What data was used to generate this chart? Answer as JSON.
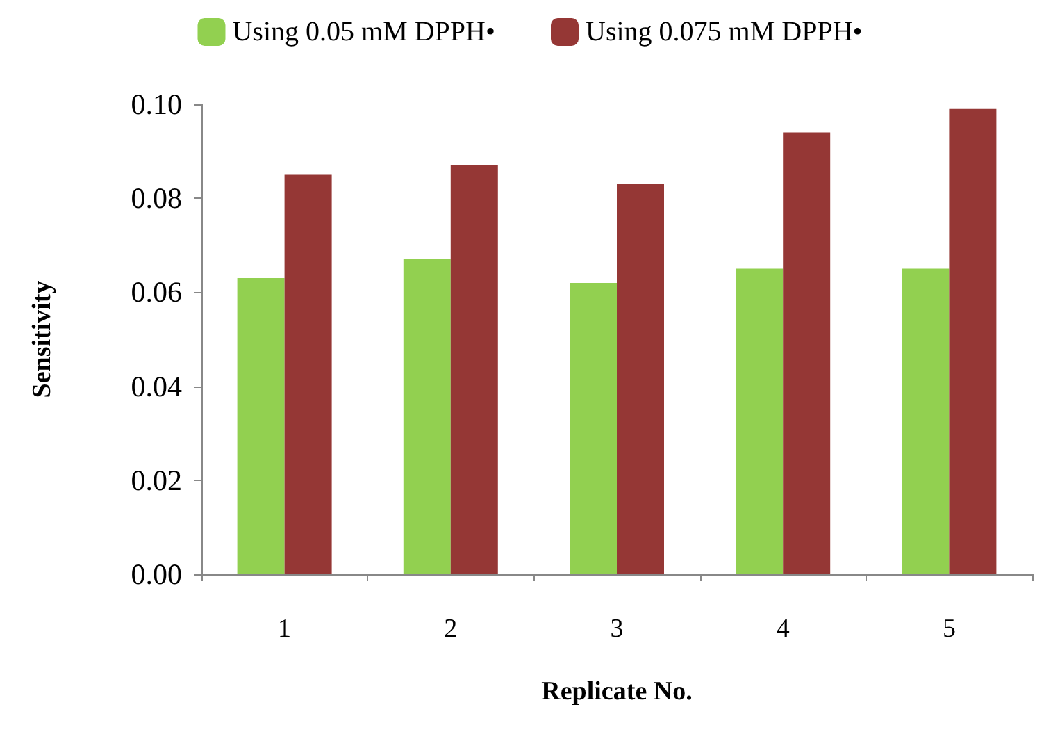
{
  "chart_data": {
    "type": "bar",
    "xlabel": "Replicate No.",
    "ylabel": "Sensitivity",
    "categories": [
      "1",
      "2",
      "3",
      "4",
      "5"
    ],
    "series": [
      {
        "name": "Using 0.05 mM DPPH•",
        "color": "#92d050",
        "values": [
          0.063,
          0.067,
          0.062,
          0.065,
          0.065
        ]
      },
      {
        "name": "Using 0.075 mM DPPH•",
        "color": "#953735",
        "values": [
          0.085,
          0.087,
          0.083,
          0.094,
          0.099
        ]
      }
    ],
    "ylim": [
      0,
      0.1
    ],
    "yticks": [
      {
        "value": 0,
        "label": "0.00"
      },
      {
        "value": 0.02,
        "label": "0.02"
      },
      {
        "value": 0.04,
        "label": "0.04"
      },
      {
        "value": 0.06,
        "label": "0.06"
      },
      {
        "value": 0.08,
        "label": "0.08"
      },
      {
        "value": 0.1,
        "label": "0.10"
      }
    ],
    "grid": false,
    "legend": "top"
  }
}
